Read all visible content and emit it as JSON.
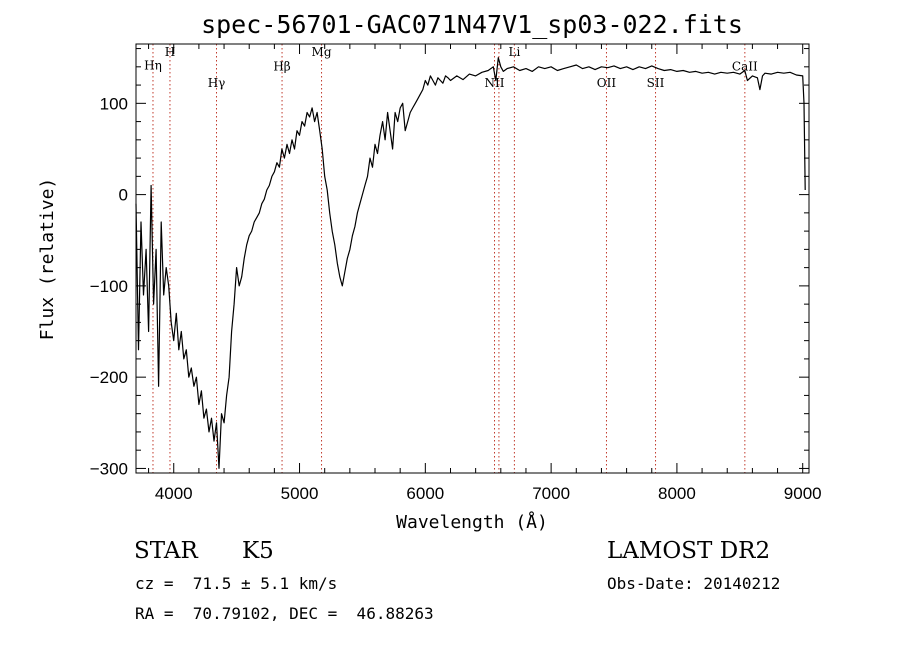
{
  "chart_data": {
    "type": "line",
    "title": "spec-56701-GAC071N47V1_sp03-022.fits",
    "xlabel": "Wavelength (Å)",
    "ylabel": "Flux (relative)",
    "xlim": [
      3700,
      9050
    ],
    "ylim": [
      -305,
      165
    ],
    "x_ticks": [
      4000,
      5000,
      6000,
      7000,
      8000,
      9000
    ],
    "y_ticks": [
      -300,
      -200,
      -100,
      0,
      100
    ],
    "grid": false,
    "series": [
      {
        "color": "#000000",
        "points": [
          [
            3700,
            -10
          ],
          [
            3720,
            -170
          ],
          [
            3740,
            -30
          ],
          [
            3760,
            -110
          ],
          [
            3780,
            -60
          ],
          [
            3800,
            -150
          ],
          [
            3820,
            10
          ],
          [
            3840,
            -120
          ],
          [
            3860,
            -60
          ],
          [
            3880,
            -210
          ],
          [
            3900,
            -30
          ],
          [
            3920,
            -110
          ],
          [
            3940,
            -80
          ],
          [
            3960,
            -100
          ],
          [
            3980,
            -140
          ],
          [
            4000,
            -160
          ],
          [
            4020,
            -130
          ],
          [
            4040,
            -170
          ],
          [
            4060,
            -150
          ],
          [
            4080,
            -180
          ],
          [
            4100,
            -170
          ],
          [
            4120,
            -200
          ],
          [
            4140,
            -190
          ],
          [
            4160,
            -210
          ],
          [
            4180,
            -200
          ],
          [
            4200,
            -230
          ],
          [
            4220,
            -215
          ],
          [
            4240,
            -245
          ],
          [
            4260,
            -235
          ],
          [
            4280,
            -260
          ],
          [
            4300,
            -245
          ],
          [
            4320,
            -270
          ],
          [
            4340,
            -250
          ],
          [
            4360,
            -300
          ],
          [
            4380,
            -240
          ],
          [
            4400,
            -250
          ],
          [
            4420,
            -220
          ],
          [
            4440,
            -200
          ],
          [
            4460,
            -150
          ],
          [
            4480,
            -120
          ],
          [
            4500,
            -80
          ],
          [
            4520,
            -100
          ],
          [
            4540,
            -90
          ],
          [
            4560,
            -70
          ],
          [
            4580,
            -55
          ],
          [
            4600,
            -45
          ],
          [
            4620,
            -40
          ],
          [
            4640,
            -30
          ],
          [
            4660,
            -25
          ],
          [
            4680,
            -20
          ],
          [
            4700,
            -10
          ],
          [
            4720,
            -5
          ],
          [
            4740,
            5
          ],
          [
            4760,
            10
          ],
          [
            4780,
            20
          ],
          [
            4800,
            25
          ],
          [
            4820,
            35
          ],
          [
            4840,
            30
          ],
          [
            4860,
            50
          ],
          [
            4880,
            40
          ],
          [
            4900,
            55
          ],
          [
            4920,
            45
          ],
          [
            4940,
            60
          ],
          [
            4960,
            50
          ],
          [
            4980,
            70
          ],
          [
            5000,
            65
          ],
          [
            5020,
            80
          ],
          [
            5040,
            75
          ],
          [
            5060,
            90
          ],
          [
            5080,
            85
          ],
          [
            5100,
            95
          ],
          [
            5120,
            80
          ],
          [
            5140,
            90
          ],
          [
            5160,
            70
          ],
          [
            5180,
            50
          ],
          [
            5200,
            20
          ],
          [
            5220,
            5
          ],
          [
            5240,
            -20
          ],
          [
            5260,
            -40
          ],
          [
            5280,
            -55
          ],
          [
            5300,
            -75
          ],
          [
            5320,
            -90
          ],
          [
            5340,
            -100
          ],
          [
            5360,
            -85
          ],
          [
            5380,
            -70
          ],
          [
            5400,
            -60
          ],
          [
            5420,
            -45
          ],
          [
            5440,
            -35
          ],
          [
            5460,
            -20
          ],
          [
            5480,
            -10
          ],
          [
            5500,
            0
          ],
          [
            5520,
            10
          ],
          [
            5540,
            20
          ],
          [
            5560,
            40
          ],
          [
            5580,
            30
          ],
          [
            5600,
            55
          ],
          [
            5620,
            45
          ],
          [
            5640,
            65
          ],
          [
            5660,
            80
          ],
          [
            5680,
            60
          ],
          [
            5700,
            90
          ],
          [
            5720,
            70
          ],
          [
            5740,
            50
          ],
          [
            5760,
            90
          ],
          [
            5780,
            80
          ],
          [
            5800,
            95
          ],
          [
            5820,
            100
          ],
          [
            5840,
            70
          ],
          [
            5860,
            80
          ],
          [
            5880,
            90
          ],
          [
            5900,
            95
          ],
          [
            5920,
            100
          ],
          [
            5940,
            105
          ],
          [
            5960,
            110
          ],
          [
            5980,
            115
          ],
          [
            6000,
            125
          ],
          [
            6020,
            120
          ],
          [
            6040,
            130
          ],
          [
            6060,
            125
          ],
          [
            6080,
            120
          ],
          [
            6100,
            128
          ],
          [
            6120,
            125
          ],
          [
            6140,
            122
          ],
          [
            6160,
            130
          ],
          [
            6180,
            128
          ],
          [
            6200,
            125
          ],
          [
            6250,
            130
          ],
          [
            6300,
            126
          ],
          [
            6350,
            132
          ],
          [
            6400,
            130
          ],
          [
            6450,
            134
          ],
          [
            6500,
            136
          ],
          [
            6540,
            140
          ],
          [
            6560,
            125
          ],
          [
            6580,
            150
          ],
          [
            6600,
            140
          ],
          [
            6620,
            135
          ],
          [
            6650,
            138
          ],
          [
            6700,
            140
          ],
          [
            6750,
            136
          ],
          [
            6800,
            138
          ],
          [
            6850,
            135
          ],
          [
            6900,
            140
          ],
          [
            6950,
            138
          ],
          [
            7000,
            140
          ],
          [
            7050,
            136
          ],
          [
            7100,
            138
          ],
          [
            7150,
            140
          ],
          [
            7200,
            142
          ],
          [
            7250,
            138
          ],
          [
            7300,
            140
          ],
          [
            7350,
            137
          ],
          [
            7400,
            140
          ],
          [
            7450,
            139
          ],
          [
            7500,
            141
          ],
          [
            7550,
            138
          ],
          [
            7600,
            140
          ],
          [
            7650,
            137
          ],
          [
            7700,
            140
          ],
          [
            7750,
            138
          ],
          [
            7800,
            141
          ],
          [
            7850,
            138
          ],
          [
            7900,
            136
          ],
          [
            7950,
            137
          ],
          [
            8000,
            135
          ],
          [
            8050,
            136
          ],
          [
            8100,
            134
          ],
          [
            8150,
            135
          ],
          [
            8200,
            133
          ],
          [
            8250,
            134
          ],
          [
            8300,
            132
          ],
          [
            8350,
            134
          ],
          [
            8400,
            133
          ],
          [
            8450,
            134
          ],
          [
            8500,
            132
          ],
          [
            8540,
            136
          ],
          [
            8560,
            125
          ],
          [
            8600,
            130
          ],
          [
            8640,
            128
          ],
          [
            8660,
            115
          ],
          [
            8680,
            130
          ],
          [
            8700,
            133
          ],
          [
            8750,
            132
          ],
          [
            8800,
            134
          ],
          [
            8850,
            133
          ],
          [
            8900,
            134
          ],
          [
            8950,
            131
          ],
          [
            9000,
            130
          ],
          [
            9010,
            100
          ],
          [
            9020,
            5
          ]
        ]
      }
    ],
    "annotations": [
      {
        "label": "Hη",
        "x": 3835,
        "label_y": 137
      },
      {
        "label": "H",
        "x": 3970,
        "label_y": 152
      },
      {
        "label": "Hγ",
        "x": 4340,
        "label_y": 118
      },
      {
        "label": "Hβ",
        "x": 4861,
        "label_y": 136
      },
      {
        "label": "Mg",
        "x": 5175,
        "label_y": 152
      },
      {
        "label": "NII",
        "x": 6550,
        "label_y": 118
      },
      {
        "label": "",
        "x": 6585,
        "label_y": 0
      },
      {
        "label": "Li",
        "x": 6708,
        "label_y": 152
      },
      {
        "label": "OII",
        "x": 7440,
        "label_y": 118
      },
      {
        "label": "SII",
        "x": 7830,
        "label_y": 118
      },
      {
        "label": "CaII",
        "x": 8540,
        "label_y": 136
      }
    ]
  },
  "info": {
    "class_label": "STAR",
    "subclass_label": "K5",
    "survey": "LAMOST DR2",
    "redshift": "cz =  71.5 ± 5.1 km/s",
    "obs_date": "Obs-Date: 20140212",
    "coords": "RA =  70.79102, DEC =  46.88263"
  }
}
